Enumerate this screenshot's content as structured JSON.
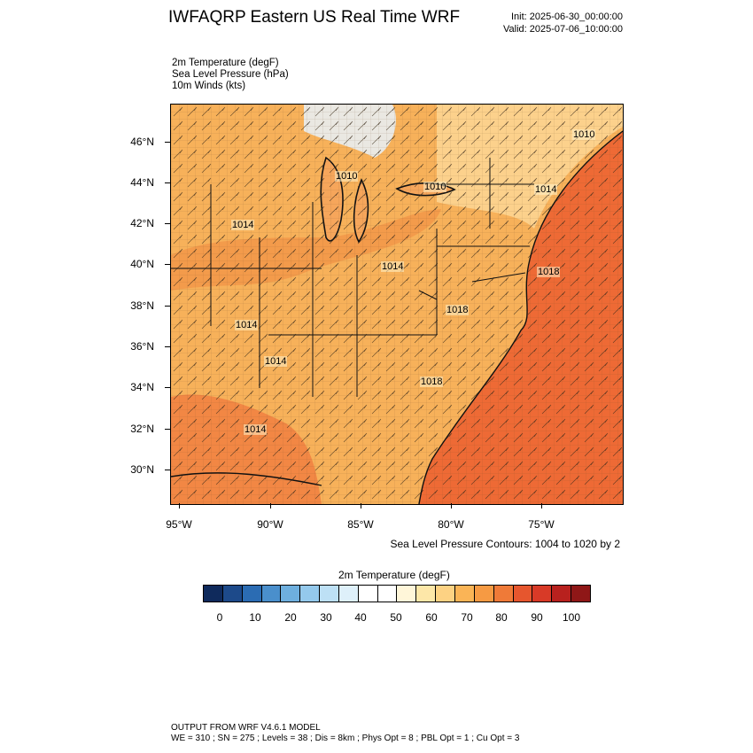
{
  "header": {
    "title": "IWFAQRP Eastern US Real Time WRF",
    "init": "Init: 2025-06-30_00:00:00",
    "valid": "Valid: 2025-07-06_10:00:00"
  },
  "fields": [
    "2m Temperature   (degF)",
    "Sea Level Pressure   (hPa)",
    "10m Winds   (kts)"
  ],
  "map": {
    "lat_labels": [
      "46°N",
      "44°N",
      "42°N",
      "40°N",
      "38°N",
      "36°N",
      "34°N",
      "32°N",
      "30°N"
    ],
    "lon_labels": [
      "95°W",
      "90°W",
      "85°W",
      "80°W",
      "75°W"
    ],
    "pressure_labels": [
      "1010",
      "1010",
      "1010",
      "1014",
      "1014",
      "1014",
      "1018",
      "1018",
      "1014",
      "1014",
      "1018",
      "1014"
    ],
    "colors": {
      "ocean": "#ee6a35",
      "land_warm": "#f7b15a",
      "land_hot": "#f0883f",
      "land_mild": "#fdd998",
      "land_cool": "#fef4d8",
      "cold_core": "#e8f2fa",
      "lakes": "#f6a65b"
    }
  },
  "contour_note": "Sea Level Pressure Contours: 1004 to 1020 by 2",
  "colorbar": {
    "title": "2m Temperature   (degF)",
    "labels": [
      "0",
      "10",
      "20",
      "30",
      "40",
      "50",
      "60",
      "70",
      "80",
      "90",
      "100"
    ],
    "colors": [
      "#0f2a5c",
      "#1d4a8a",
      "#2b6cb3",
      "#4a8fcc",
      "#6eafde",
      "#94c9ec",
      "#bde0f5",
      "#def0fa",
      "#ffffff",
      "#ffffff",
      "#fff6d9",
      "#fde7a8",
      "#fdd283",
      "#fab456",
      "#f69a43",
      "#ef7a38",
      "#e6562e",
      "#d83a27",
      "#b8211e",
      "#8f1717"
    ]
  },
  "footer": {
    "line1": "OUTPUT FROM WRF V4.6.1 MODEL",
    "line2": "WE = 310 ; SN = 275 ; Levels = 38 ; Dis = 8km ; Phys Opt = 8 ; PBL Opt = 1 ; Cu Opt = 3"
  }
}
